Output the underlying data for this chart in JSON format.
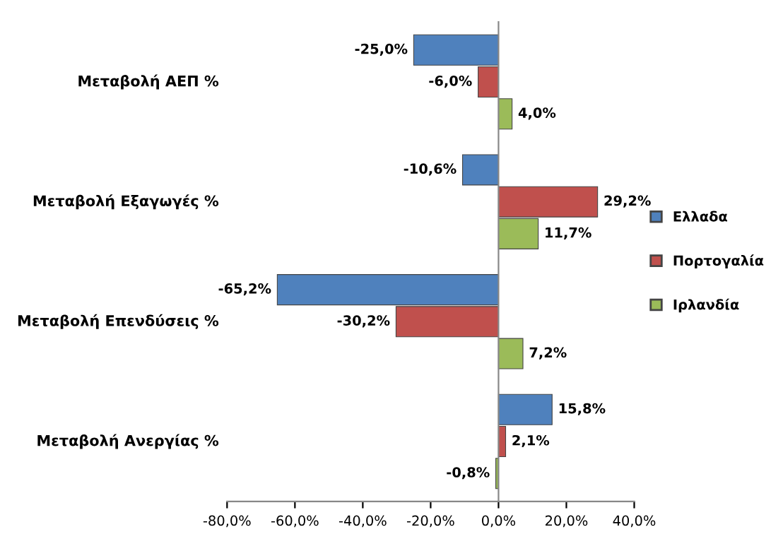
{
  "chart_data": {
    "type": "bar",
    "orientation": "horizontal",
    "categories": [
      "Μεταβολή ΑΕΠ %",
      "Μεταβολή Εξαγωγές %",
      "Μεταβολή Επενδύσεις %",
      "Μεταβολή Ανεργίας %"
    ],
    "series": [
      {
        "name": "Ελλαδα",
        "color": "#4f81bd",
        "values": [
          -25.0,
          -10.6,
          -65.2,
          15.8
        ],
        "value_labels": [
          "-25,0%",
          "-10,6%",
          "-65,2%",
          "15,8%"
        ]
      },
      {
        "name": "Πορτογαλία",
        "color": "#c0504d",
        "values": [
          -6.0,
          29.2,
          -30.2,
          2.1
        ],
        "value_labels": [
          "-6,0%",
          "29,2%",
          "-30,2%",
          "2,1%"
        ]
      },
      {
        "name": "Ιρλανδία",
        "color": "#9bbb59",
        "values": [
          4.0,
          11.7,
          7.2,
          -0.8
        ],
        "value_labels": [
          "4,0%",
          "11,7%",
          "7,2%",
          "-0,8%"
        ]
      }
    ],
    "xlim": [
      -80,
      40
    ],
    "xticks": [
      {
        "value": -80,
        "label": "-80,0%"
      },
      {
        "value": -60,
        "label": "-60,0%"
      },
      {
        "value": -40,
        "label": "-40,0%"
      },
      {
        "value": -20,
        "label": "-20,0%"
      },
      {
        "value": 0,
        "label": "0,0%"
      },
      {
        "value": 20,
        "label": "20,0%"
      },
      {
        "value": 40,
        "label": "40,0%"
      }
    ],
    "legend": "right"
  }
}
